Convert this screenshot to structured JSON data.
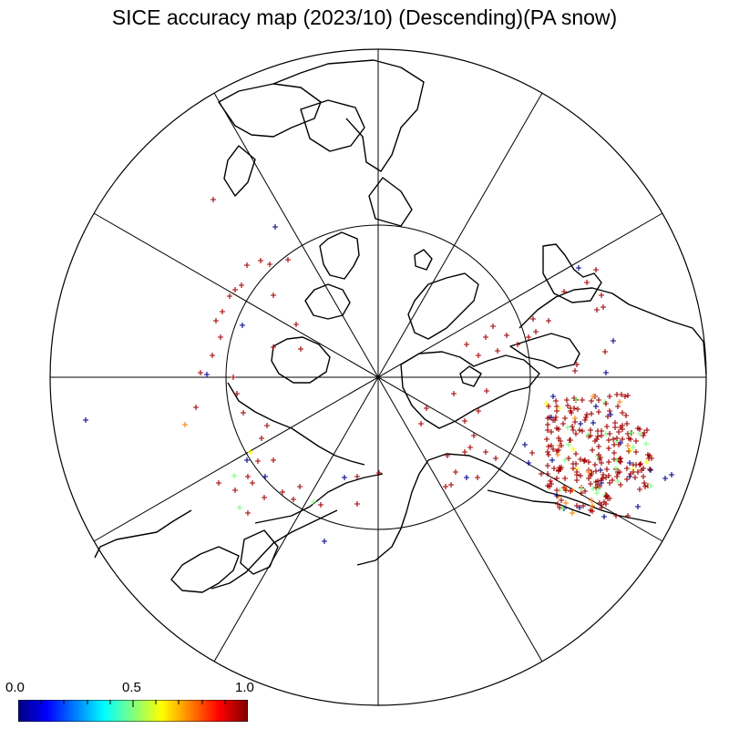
{
  "title": "SICE accuracy map (2023/10) (Descending)(PA snow)",
  "colorbar": {
    "min_label": "0.0",
    "mid_label": "0.5",
    "max_label": "1.0",
    "colors": [
      "#00007f",
      "#0000ff",
      "#007fff",
      "#00ffff",
      "#7fff7f",
      "#ffff00",
      "#ff7f00",
      "#ff0000",
      "#7f0000"
    ]
  },
  "grid": {
    "latitude_circle_deg": 60,
    "meridian_spacing_deg": 30
  },
  "markers": {
    "symbol": "+",
    "colors": {
      "high": "#a00000",
      "low": "#00008b",
      "mid_green": "#7fff7f",
      "mid_orange": "#ff7f00",
      "mid_yellow": "#ffff00"
    }
  }
}
